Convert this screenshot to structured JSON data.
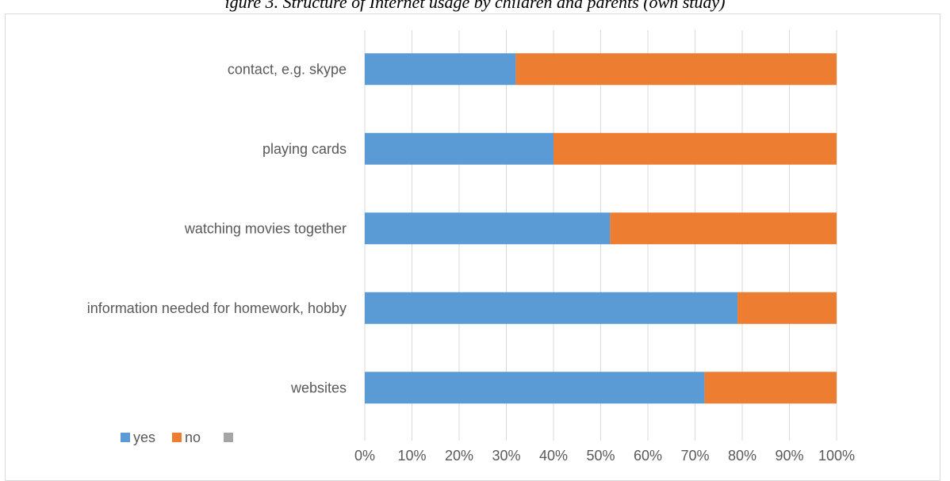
{
  "chart_data": {
    "type": "bar",
    "orientation": "horizontal",
    "stacked": "percent",
    "title": "igure 3. Structure of Internet usage by children and parents (own study)",
    "categories": [
      "contact, e.g. skype",
      "playing cards",
      "watching movies together",
      "information needed for homework, hobby",
      "websites"
    ],
    "series": [
      {
        "name": "yes",
        "color": "#5b9bd5",
        "values": [
          32,
          40,
          52,
          79,
          72
        ]
      },
      {
        "name": "no",
        "color": "#ed7d31",
        "values": [
          68,
          60,
          48,
          21,
          28
        ]
      },
      {
        "name": "",
        "color": "#a5a5a5",
        "values": [
          0,
          0,
          0,
          0,
          0
        ]
      }
    ],
    "x_ticks": [
      "0%",
      "10%",
      "20%",
      "30%",
      "40%",
      "50%",
      "60%",
      "70%",
      "80%",
      "90%",
      "100%"
    ],
    "xlim": [
      0,
      100
    ],
    "grid": true,
    "legend_position": "bottom-left"
  }
}
